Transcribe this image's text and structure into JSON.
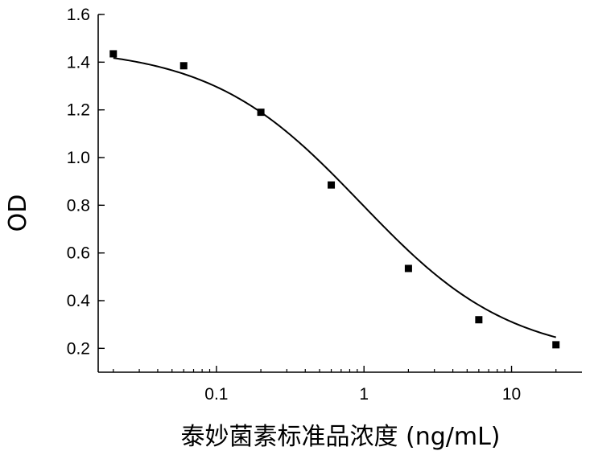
{
  "chart_data": {
    "type": "scatter",
    "title": "",
    "xlabel": "泰妙菌素标准品浓度 (ng/mL)",
    "ylabel": "OD",
    "x_scale": "log",
    "xlim": [
      0.0158,
      30
    ],
    "ylim": [
      0.1,
      1.6
    ],
    "x_ticks": [
      {
        "value": 0.1,
        "label": "0.1"
      },
      {
        "value": 1,
        "label": "1"
      },
      {
        "value": 10,
        "label": "10"
      }
    ],
    "y_ticks": [
      {
        "value": 0.2,
        "label": "0.2"
      },
      {
        "value": 0.4,
        "label": "0.4"
      },
      {
        "value": 0.6,
        "label": "0.6"
      },
      {
        "value": 0.8,
        "label": "0.8"
      },
      {
        "value": 1.0,
        "label": "1.0"
      },
      {
        "value": 1.2,
        "label": "1.2"
      },
      {
        "value": 1.4,
        "label": "1.4"
      },
      {
        "value": 1.6,
        "label": "1.6"
      }
    ],
    "grid": false,
    "legend": "none",
    "marker": "square",
    "color": "#000000",
    "points": [
      {
        "x": 0.02,
        "y": 1.435
      },
      {
        "x": 0.06,
        "y": 1.385
      },
      {
        "x": 0.2,
        "y": 1.19
      },
      {
        "x": 0.6,
        "y": 0.885
      },
      {
        "x": 2,
        "y": 0.535
      },
      {
        "x": 6,
        "y": 0.32
      },
      {
        "x": 20,
        "y": 0.215
      }
    ],
    "fit_curve": {
      "model": "four-parameter logistic",
      "top": 1.465,
      "bottom": 0.155,
      "ec50": 0.95,
      "hill": 0.85,
      "x_range": [
        0.02,
        20
      ]
    }
  }
}
